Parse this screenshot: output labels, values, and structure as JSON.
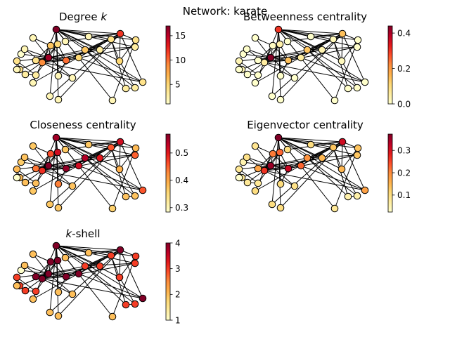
{
  "title": "Network: karate",
  "chart_data": {
    "type": "network",
    "network": "karate",
    "colormap": "YlOrRd",
    "colormap_stops": [
      "#ffffcc",
      "#ffeda0",
      "#fed976",
      "#feb24c",
      "#fd8d3c",
      "#fc4e2a",
      "#e31a1c",
      "#bd0026",
      "#800026"
    ],
    "edges": [
      [
        0,
        1
      ],
      [
        0,
        2
      ],
      [
        0,
        3
      ],
      [
        0,
        4
      ],
      [
        0,
        5
      ],
      [
        0,
        6
      ],
      [
        0,
        7
      ],
      [
        0,
        8
      ],
      [
        0,
        10
      ],
      [
        0,
        11
      ],
      [
        0,
        12
      ],
      [
        0,
        13
      ],
      [
        0,
        17
      ],
      [
        0,
        19
      ],
      [
        0,
        21
      ],
      [
        0,
        31
      ],
      [
        1,
        2
      ],
      [
        1,
        3
      ],
      [
        1,
        7
      ],
      [
        1,
        13
      ],
      [
        1,
        17
      ],
      [
        1,
        19
      ],
      [
        1,
        21
      ],
      [
        1,
        30
      ],
      [
        2,
        3
      ],
      [
        2,
        7
      ],
      [
        2,
        8
      ],
      [
        2,
        9
      ],
      [
        2,
        13
      ],
      [
        2,
        27
      ],
      [
        2,
        28
      ],
      [
        2,
        32
      ],
      [
        3,
        7
      ],
      [
        3,
        12
      ],
      [
        3,
        13
      ],
      [
        4,
        6
      ],
      [
        4,
        10
      ],
      [
        5,
        6
      ],
      [
        5,
        10
      ],
      [
        5,
        16
      ],
      [
        6,
        16
      ],
      [
        8,
        30
      ],
      [
        8,
        32
      ],
      [
        8,
        33
      ],
      [
        9,
        33
      ],
      [
        13,
        33
      ],
      [
        14,
        32
      ],
      [
        14,
        33
      ],
      [
        15,
        32
      ],
      [
        15,
        33
      ],
      [
        18,
        32
      ],
      [
        18,
        33
      ],
      [
        19,
        33
      ],
      [
        20,
        32
      ],
      [
        20,
        33
      ],
      [
        22,
        32
      ],
      [
        22,
        33
      ],
      [
        23,
        25
      ],
      [
        23,
        27
      ],
      [
        23,
        29
      ],
      [
        23,
        32
      ],
      [
        23,
        33
      ],
      [
        24,
        25
      ],
      [
        24,
        27
      ],
      [
        24,
        31
      ],
      [
        25,
        31
      ],
      [
        26,
        29
      ],
      [
        26,
        33
      ],
      [
        27,
        33
      ],
      [
        28,
        31
      ],
      [
        28,
        33
      ],
      [
        29,
        32
      ],
      [
        29,
        33
      ],
      [
        30,
        32
      ],
      [
        30,
        33
      ],
      [
        31,
        32
      ],
      [
        31,
        33
      ],
      [
        32,
        33
      ]
    ],
    "panels": [
      {
        "title_html": "Degree <tspan font-style=\"italic\">k</tspan>",
        "vmin": 1,
        "vmax": 17,
        "ticks": [
          5,
          10,
          15
        ],
        "tick_labels": [
          "5",
          "10",
          "15"
        ],
        "values": [
          16,
          9,
          10,
          6,
          3,
          4,
          4,
          4,
          5,
          2,
          3,
          1,
          2,
          5,
          2,
          2,
          2,
          2,
          2,
          3,
          2,
          2,
          2,
          5,
          3,
          3,
          2,
          4,
          3,
          4,
          4,
          6,
          12,
          17
        ]
      },
      {
        "title_html": "Betweenness centrality",
        "vmin": 0,
        "vmax": 0.44,
        "ticks": [
          0,
          0.2,
          0.4
        ],
        "tick_labels": [
          "0.0",
          "0.2",
          "0.4"
        ],
        "values": [
          0.437,
          0.054,
          0.144,
          0.012,
          0.001,
          0.03,
          0.03,
          0,
          0.056,
          0.001,
          0.001,
          0,
          0,
          0.046,
          0,
          0,
          0,
          0,
          0,
          0.033,
          0,
          0,
          0,
          0.018,
          0.002,
          0.004,
          0,
          0.022,
          0.002,
          0.003,
          0.001,
          0.138,
          0.145,
          0.304
        ]
      },
      {
        "title_html": "Closeness centrality",
        "vmin": 0.284,
        "vmax": 0.569,
        "ticks": [
          0.3,
          0.4,
          0.5
        ],
        "tick_labels": [
          "0.3",
          "0.4",
          "0.5"
        ],
        "values": [
          0.569,
          0.485,
          0.559,
          0.465,
          0.379,
          0.384,
          0.384,
          0.44,
          0.516,
          0.434,
          0.379,
          0.367,
          0.371,
          0.516,
          0.371,
          0.371,
          0.284,
          0.375,
          0.371,
          0.5,
          0.371,
          0.375,
          0.371,
          0.393,
          0.375,
          0.375,
          0.363,
          0.458,
          0.452,
          0.384,
          0.458,
          0.541,
          0.516,
          0.55
        ]
      },
      {
        "title_html": "Eigenvector centrality",
        "vmin": 0.024,
        "vmax": 0.373,
        "ticks": [
          0.1,
          0.2,
          0.3
        ],
        "tick_labels": [
          "0.1",
          "0.2",
          "0.3"
        ],
        "values": [
          0.355,
          0.266,
          0.317,
          0.211,
          0.076,
          0.079,
          0.079,
          0.171,
          0.227,
          0.103,
          0.076,
          0.053,
          0.084,
          0.226,
          0.101,
          0.101,
          0.024,
          0.092,
          0.101,
          0.148,
          0.101,
          0.092,
          0.101,
          0.15,
          0.057,
          0.059,
          0.076,
          0.133,
          0.131,
          0.135,
          0.175,
          0.191,
          0.309,
          0.373
        ]
      },
      {
        "title_html": "<tspan font-style=\"italic\">k</tspan>-shell",
        "vmin": 1,
        "vmax": 4,
        "ticks": [
          1,
          2,
          3,
          4
        ],
        "tick_labels": [
          "1",
          "2",
          "3",
          "4"
        ],
        "values": [
          4,
          4,
          4,
          4,
          3,
          3,
          3,
          4,
          4,
          2,
          3,
          1,
          2,
          4,
          2,
          2,
          2,
          2,
          2,
          3,
          2,
          2,
          2,
          3,
          3,
          3,
          2,
          3,
          3,
          3,
          4,
          3,
          4,
          4
        ]
      }
    ]
  }
}
